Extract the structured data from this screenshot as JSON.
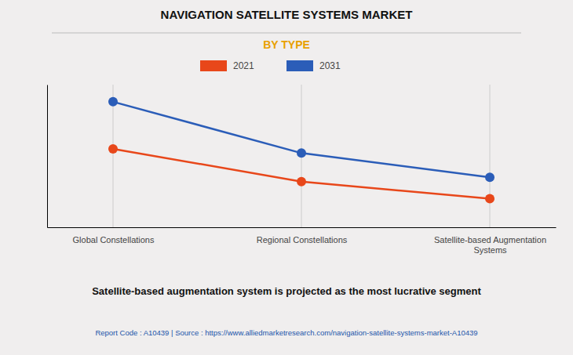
{
  "chart_data": {
    "type": "line",
    "title": "NAVIGATION SATELLITE SYSTEMS MARKET",
    "subtitle": "BY TYPE",
    "categories": [
      "Global Constellations",
      "Regional Constellations",
      "Satellite-based Augmentation\nSystems"
    ],
    "series": [
      {
        "name": "2021",
        "color": "#e8471a",
        "values": [
          55,
          32,
          20
        ],
        "marker": "circle"
      },
      {
        "name": "2031",
        "color": "#2b5db8",
        "values": [
          88,
          52,
          35
        ],
        "marker": "circle"
      }
    ],
    "ylim": [
      0,
      100
    ],
    "grid": true,
    "legend": "top",
    "tick_labels": "x",
    "annotations": [
      "Satellite-based augmentation system is projected as the most lucrative segment",
      "Report Code : A10439  |  Source : https://www.alliedmarketresearch.com/navigation-satellite-systems-market-A10439"
    ]
  }
}
